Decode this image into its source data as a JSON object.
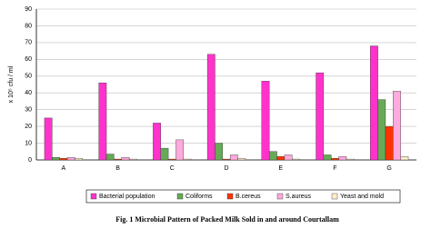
{
  "chart_data": {
    "type": "bar",
    "categories": [
      "A",
      "B",
      "C",
      "D",
      "E",
      "F",
      "G"
    ],
    "series": [
      {
        "name": "Bacterial population",
        "color": "#ff33cc",
        "values": [
          25,
          46,
          22,
          63,
          47,
          52,
          68
        ]
      },
      {
        "name": "Coliforms",
        "color": "#66aa55",
        "values": [
          1.5,
          3.5,
          7,
          10,
          5,
          3,
          36
        ]
      },
      {
        "name": "B.cereus",
        "color": "#ff3300",
        "values": [
          1,
          0.5,
          0.5,
          0.5,
          2,
          1,
          20
        ]
      },
      {
        "name": "S.aureus",
        "color": "#ffaadd",
        "values": [
          1.5,
          1.5,
          12,
          3,
          3,
          2,
          41
        ]
      },
      {
        "name": "Yeast and mold",
        "color": "#ffeecc",
        "values": [
          1,
          0.5,
          0.5,
          1,
          0.5,
          0.5,
          2
        ]
      }
    ],
    "ylabel": "x 10⁵ cfu / ml",
    "ylim": [
      0,
      90
    ],
    "yticks": [
      0,
      10,
      20,
      30,
      40,
      50,
      60,
      70,
      80,
      90
    ],
    "grid": true,
    "legend": "bottom",
    "caption": "Fig. 1 Microbial Pattern of Packed Milk Sold in and around Courtallam"
  }
}
